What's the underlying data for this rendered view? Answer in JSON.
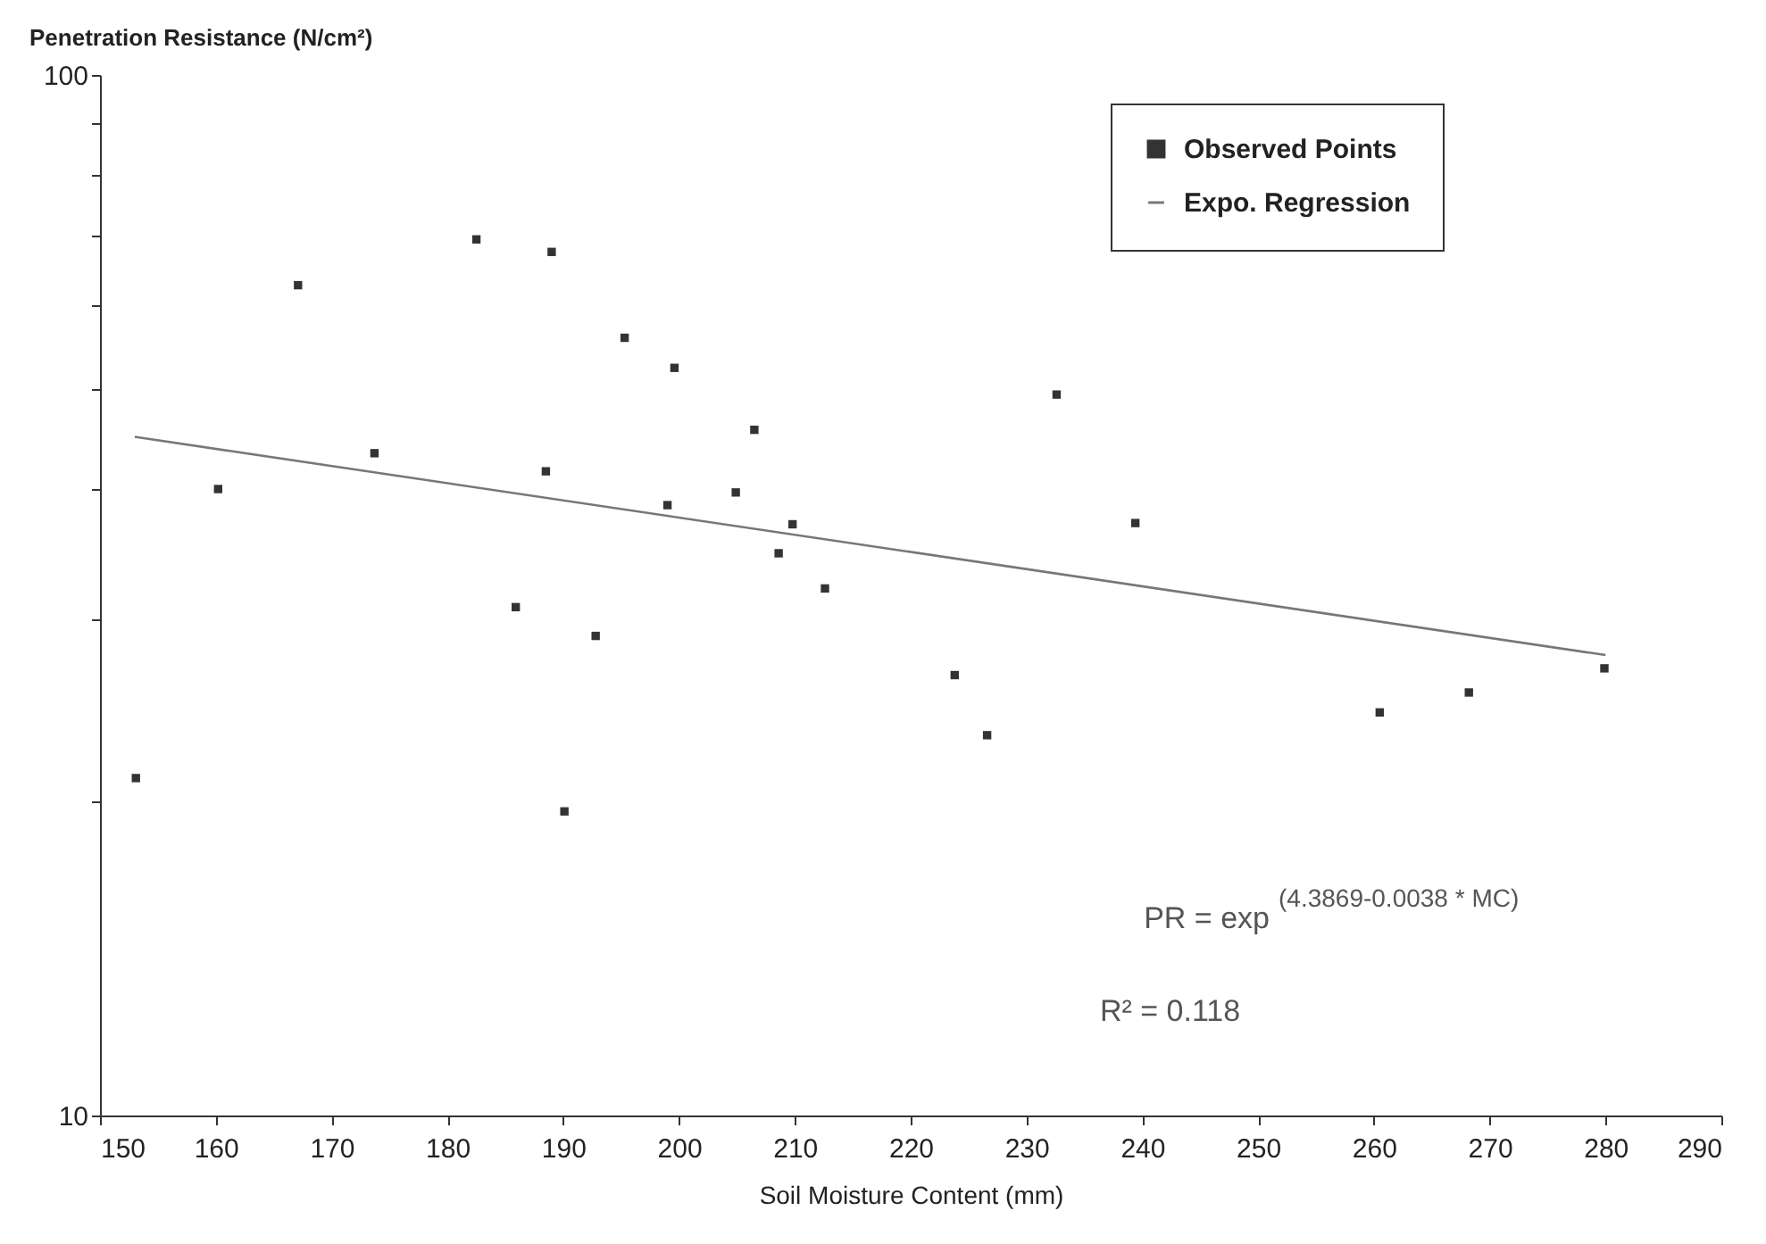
{
  "chart_data": {
    "type": "scatter",
    "ylabel": "Penetration Resistance (N/cm²)",
    "xlabel": "Soil Moisture Content (mm)",
    "annotations": [
      "PR = exp$^{(4.3869-0.0038 * MC)}$",
      "R² = 0.118"
    ],
    "log": "y",
    "grid": false,
    "legend": "top right",
    "xlim": [
      150,
      290
    ],
    "xticks": [
      150,
      160,
      170,
      180,
      190,
      200,
      210,
      220,
      230,
      240,
      250,
      260,
      270,
      280,
      290
    ],
    "ylim": [
      10,
      100
    ],
    "yticks": [
      10,
      {
        "value": 20,
        "label": null
      },
      {
        "value": 30,
        "label": null
      },
      {
        "value": 40,
        "label": null
      },
      {
        "value": 50,
        "label": null
      },
      {
        "value": 60,
        "label": null
      },
      {
        "value": 70,
        "label": null
      },
      {
        "value": 80,
        "label": null
      },
      {
        "value": 90,
        "label": null
      },
      100
    ],
    "series": [
      {
        "name": "Observed Points",
        "marker": "square",
        "color": "#333333",
        "x": [
          153.1,
          160.2,
          167.1,
          173.7,
          182.5,
          189.0,
          195.3,
          199.6,
          206.5,
          188.5,
          199.0,
          204.9,
          209.8,
          208.6,
          212.6,
          185.9,
          192.8,
          190.1,
          232.6,
          239.4,
          223.8,
          226.6,
          260.5,
          268.2,
          279.9
        ],
        "values": [
          21.1,
          40.0,
          62.8,
          43.3,
          69.5,
          67.6,
          55.9,
          52.3,
          45.6,
          41.6,
          38.6,
          39.7,
          37.0,
          34.7,
          32.1,
          30.8,
          28.9,
          19.6,
          49.3,
          37.1,
          26.5,
          23.2,
          24.4,
          25.5,
          26.9
        ]
      },
      {
        "name": "Expo. Regression",
        "type": "line",
        "line_style": "solid",
        "marker": "none",
        "color": "#777777",
        "x": [
          153,
          280
        ],
        "values": [
          44.9,
          27.7
        ]
      }
    ]
  }
}
